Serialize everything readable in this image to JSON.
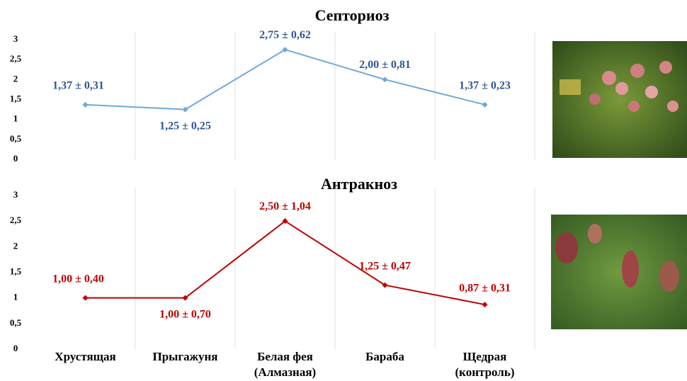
{
  "chart_data": [
    {
      "type": "line",
      "title": "Септориоз",
      "categories": [
        null,
        null,
        null,
        null,
        null
      ],
      "values": [
        1.37,
        1.25,
        2.75,
        2.0,
        1.37
      ],
      "value_labels": [
        "1,37 ± 0,31",
        "1,25 ± 0,25",
        "2,75 ± 0,62",
        "2,00 ± 0,81",
        "1,37 ± 0,23"
      ],
      "color": "#6fa8dc",
      "label_color": "#2f5597",
      "ylim": [
        0,
        3
      ],
      "yticks": [
        0,
        {
          "value": 0.5,
          "label": "0,5"
        },
        1,
        {
          "value": 1.5,
          "label": "1,5"
        },
        2,
        {
          "value": 2.5,
          "label": "2,5"
        },
        3
      ],
      "grid": true
    },
    {
      "type": "line",
      "title": "Антракноз",
      "categories": [
        "Хрустящая",
        "Прыгажуня",
        "Белая фея\n(Алмазная)",
        "Бараба",
        "Щедрая\n(контроль)"
      ],
      "values": [
        1.0,
        1.0,
        2.5,
        1.25,
        0.87
      ],
      "value_labels": [
        "1,00 ± 0,40",
        "1,00 ± 0,70",
        "2,50 ± 1,04",
        "1,25 ± 0,47",
        "0,87 ± 0,31"
      ],
      "color": "#c00000",
      "label_color": "#c00000",
      "ylim": [
        0,
        3
      ],
      "yticks": [
        0,
        {
          "value": 0.5,
          "label": "0,5"
        },
        1,
        {
          "value": 1.5,
          "label": "1,5"
        },
        2,
        {
          "value": 2.5,
          "label": "2,5"
        },
        3
      ],
      "grid": true
    }
  ]
}
